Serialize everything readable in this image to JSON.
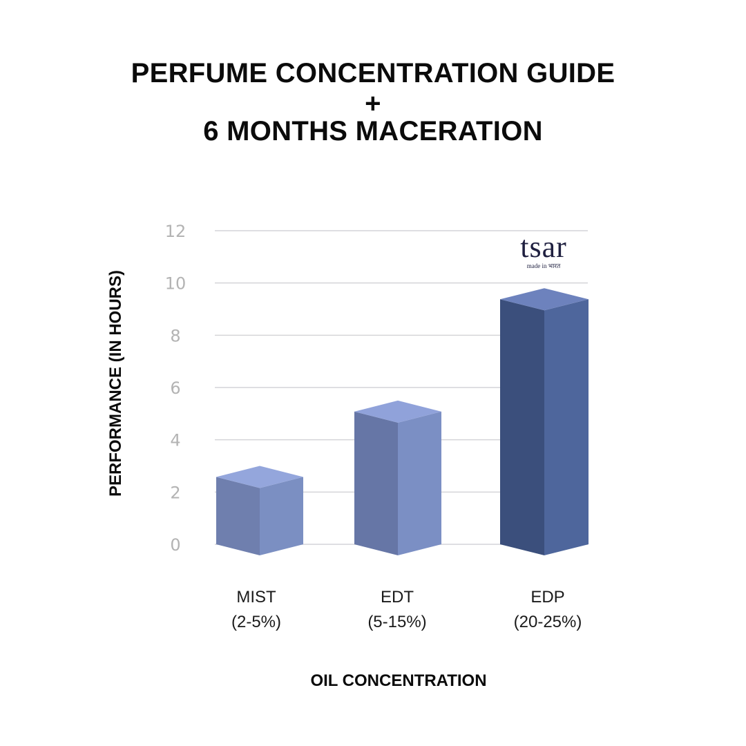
{
  "title": {
    "line1": "PERFUME CONCENTRATION GUIDE",
    "line2": "+",
    "line3": "6 MONTHS MACERATION"
  },
  "brand": {
    "name": "tsar",
    "tagline": "made in भारत"
  },
  "colors": {
    "mist_front": "#6f7fae",
    "mist_side": "#7b8fc2",
    "mist_top": "#94a6dc",
    "edt_front": "#6676a6",
    "edt_side": "#7b8fc4",
    "edt_top": "#90a2da",
    "edp_front": "#3b4f7c",
    "edp_side": "#4e669c",
    "edp_top": "#6d82bd",
    "grid": "#d4d4d8"
  },
  "chart_data": {
    "type": "bar",
    "xlabel": "OIL CONCENTRATION",
    "ylabel": "PERFORMANCE (IN HOURS)",
    "ylim": [
      0,
      12
    ],
    "yticks": [
      0,
      2,
      4,
      6,
      8,
      10,
      12
    ],
    "grid": true,
    "categories": [
      {
        "name": "MIST",
        "range": "(2-5%)",
        "value": 3
      },
      {
        "name": "EDT",
        "range": "(5-15%)",
        "value": 5.5
      },
      {
        "name": "EDP",
        "range": "(20-25%)",
        "value": 9.8
      }
    ]
  }
}
